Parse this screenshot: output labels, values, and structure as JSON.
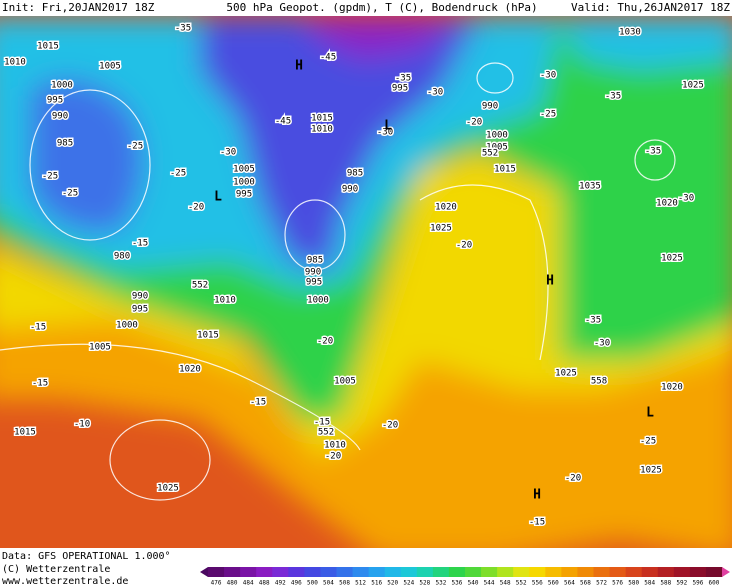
{
  "header": {
    "init": "Init: Fri,20JAN2017 18Z",
    "title": "500 hPa Geopot. (gpdm), T (C), Bodendruck (hPa)",
    "valid": "Valid: Thu,26JAN2017 18Z"
  },
  "map_labels": [
    "1015",
    "1010",
    "1005",
    "1000",
    "995",
    "990",
    "985",
    "-25",
    "-25",
    "-25",
    "-25",
    "-20",
    "L",
    "-15",
    "980",
    "990",
    "995",
    "1000",
    "1005",
    "-15",
    "-15",
    "1010",
    "1015",
    "552",
    "1020",
    "-15",
    "1015",
    "-10",
    "1025",
    "-35",
    "H",
    "-45",
    "-45",
    "1015",
    "1010",
    "1005",
    "1000",
    "995",
    "-30",
    "985",
    "990",
    "-30",
    "L",
    "-35",
    "995",
    "-30",
    "990",
    "-25",
    "-20",
    "1000",
    "1005",
    "552",
    "1015",
    "1030",
    "-35",
    "-30",
    "1025",
    "-35",
    "1035",
    "1020",
    "-30",
    "1025",
    "H",
    "1020",
    "1025",
    "-20",
    "985",
    "990",
    "995",
    "1000",
    "-20",
    "1005",
    "-35",
    "-30",
    "1025",
    "558",
    "1020",
    "-15",
    "552",
    "1010",
    "-20",
    "-20",
    "L",
    "-25",
    "1025",
    "-20",
    "H",
    "-15"
  ],
  "footer": {
    "data": "Data: GFS OPERATIONAL 1.000°",
    "copyright": "(C) Wetterzentrale",
    "url": "www.wetterzentrale.de"
  },
  "colorbar": {
    "labels": [
      476,
      480,
      484,
      488,
      492,
      496,
      500,
      504,
      508,
      512,
      516,
      520,
      524,
      528,
      532,
      536,
      540,
      544,
      548,
      552,
      556,
      560,
      564,
      568,
      572,
      576,
      580,
      584,
      588,
      592,
      596,
      600
    ]
  }
}
